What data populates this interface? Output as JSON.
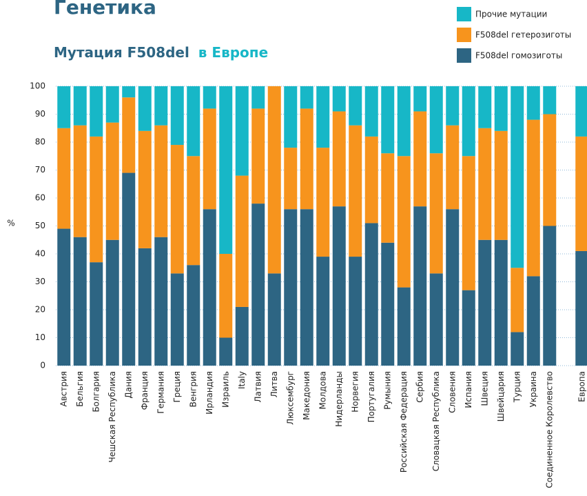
{
  "chart_data": {
    "type": "stacked_bar",
    "title": "Генетика",
    "subtitle": "Мутация F508del",
    "subtitle_highlight": "в Европе",
    "ylabel": "%",
    "categories": [
      "Австрия",
      "Бельгия",
      "Болгария",
      "Чешская Республика",
      "Дания",
      "Франция",
      "Германия",
      "Греция",
      "Венгрия",
      "Ирландия",
      "Израиль",
      "Italy",
      "Латвия",
      "Литва",
      "Люксембург",
      "Македония",
      "Молдова",
      "Нидерланды",
      "Норвегия",
      "Португалия",
      "Румыния",
      "Российская Федерация",
      "Сербия",
      "Словацкая Республика",
      "Словения",
      "Испания",
      "Швеция",
      "Швейцария",
      "Турция",
      "Украина",
      "Соединенное Королевство",
      null,
      "Европа"
    ],
    "series": [
      {
        "name": "F508del гомозиготы",
        "color": "#2d6583",
        "values": [
          49,
          46,
          37,
          45,
          69,
          42,
          46,
          33,
          36,
          56,
          10,
          21,
          58,
          33,
          56,
          56,
          39,
          57,
          39,
          51,
          44,
          28,
          57,
          33,
          56,
          27,
          45,
          45,
          12,
          32,
          50,
          null,
          41
        ]
      },
      {
        "name": "F508del гетерозиготы",
        "color": "#f7941d",
        "values": [
          36,
          40,
          45,
          42,
          27,
          42,
          40,
          46,
          39,
          36,
          30,
          47,
          34,
          67,
          22,
          36,
          39,
          34,
          47,
          31,
          32,
          47,
          34,
          43,
          30,
          48,
          40,
          39,
          23,
          56,
          40,
          null,
          41
        ]
      },
      {
        "name": "Прочие мутации",
        "color": "#17b7c7",
        "values": [
          15,
          14,
          18,
          13,
          4,
          16,
          14,
          21,
          25,
          8,
          60,
          32,
          8,
          0,
          22,
          8,
          22,
          9,
          14,
          18,
          24,
          25,
          9,
          24,
          14,
          25,
          15,
          16,
          65,
          12,
          10,
          null,
          18
        ]
      }
    ],
    "ylim": [
      0,
      100
    ],
    "yticks": [
      0,
      10,
      20,
      30,
      40,
      50,
      60,
      70,
      80,
      90,
      100
    ],
    "grid": true,
    "legend": "top-right"
  }
}
